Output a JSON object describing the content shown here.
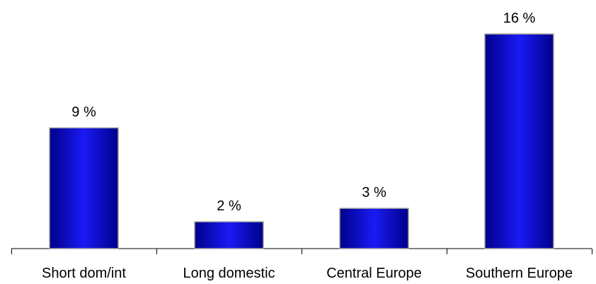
{
  "chart_data": {
    "type": "bar",
    "categories": [
      "Short dom/int",
      "Long domestic",
      "Central Europe",
      "Southern Europe"
    ],
    "values": [
      9,
      2,
      3,
      16
    ],
    "value_labels": [
      "9 %",
      "2 %",
      "3 %",
      "16 %"
    ],
    "ylim": [
      0,
      16
    ],
    "grid": false,
    "legend": "none",
    "bar_color": "#1010c8"
  }
}
